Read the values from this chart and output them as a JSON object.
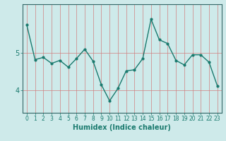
{
  "x": [
    0,
    1,
    2,
    3,
    4,
    5,
    6,
    7,
    8,
    9,
    10,
    11,
    12,
    13,
    14,
    15,
    16,
    17,
    18,
    19,
    20,
    21,
    22,
    23
  ],
  "y": [
    5.75,
    4.82,
    4.88,
    4.72,
    4.8,
    4.62,
    4.85,
    5.1,
    4.78,
    4.15,
    3.72,
    4.05,
    4.52,
    4.55,
    4.85,
    5.9,
    5.35,
    5.25,
    4.8,
    4.68,
    4.95,
    4.95,
    4.75,
    4.12
  ],
  "line_color": "#1a7a6e",
  "marker": "o",
  "marker_size": 2.0,
  "linewidth": 1.0,
  "background_color": "#ceeaea",
  "grid_color_x": "#d08080",
  "grid_color_y": "#d08080",
  "xlabel": "Humidex (Indice chaleur)",
  "xlabel_fontsize": 7,
  "yticks": [
    4,
    5
  ],
  "ylim": [
    3.4,
    6.3
  ],
  "xlim": [
    -0.5,
    23.5
  ],
  "xtick_fontsize": 5.5,
  "ytick_fontsize": 7
}
